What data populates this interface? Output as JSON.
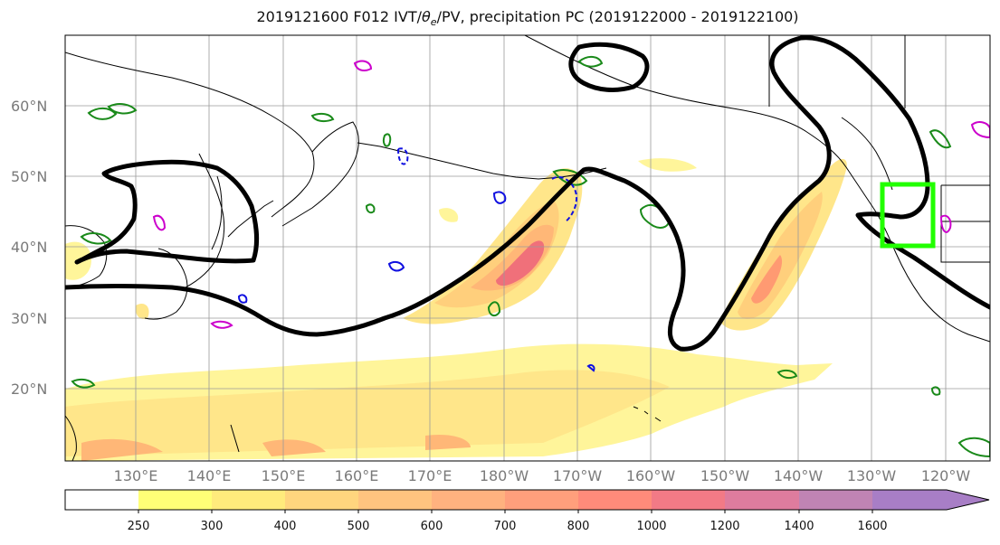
{
  "title": {
    "prefix": "2019121600 F012 IVT/",
    "theta_symbol": "θ",
    "theta_sub": "e",
    "suffix": "/PV, precipitation PC (2019122000 - 2019122100)"
  },
  "latitude_labels": [
    "60°N",
    "50°N",
    "40°N",
    "30°N",
    "20°N"
  ],
  "longitude_labels": [
    "130°E",
    "140°E",
    "150°E",
    "160°E",
    "170°E",
    "180°W",
    "170°W",
    "160°W",
    "150°W",
    "140°W",
    "130°W",
    "120°W"
  ],
  "colorbar": {
    "tick_labels": [
      "250",
      "300",
      "400",
      "500",
      "600",
      "700",
      "800",
      "1000",
      "1200",
      "1400",
      "1600"
    ],
    "colors": [
      "#ffffff",
      "#ffff77",
      "#ffeb7c",
      "#ffd57e",
      "#ffc47f",
      "#ffb27f",
      "#ff9f7c",
      "#ff8b7a",
      "#f27a86",
      "#de7c9e",
      "#c084b4",
      "#a87ec6"
    ]
  },
  "ivt_colors": [
    "#fff59a",
    "#ffe68a",
    "#ffcf7c",
    "#ffb777",
    "#ff9a72",
    "#f0707a"
  ],
  "contour_colors": {
    "theta_e": "#000000",
    "pv_green": "#1a8a1a",
    "pv_blue": "#1010e0",
    "pv_magenta": "#cc00cc",
    "target_box": "#22ff00"
  }
}
